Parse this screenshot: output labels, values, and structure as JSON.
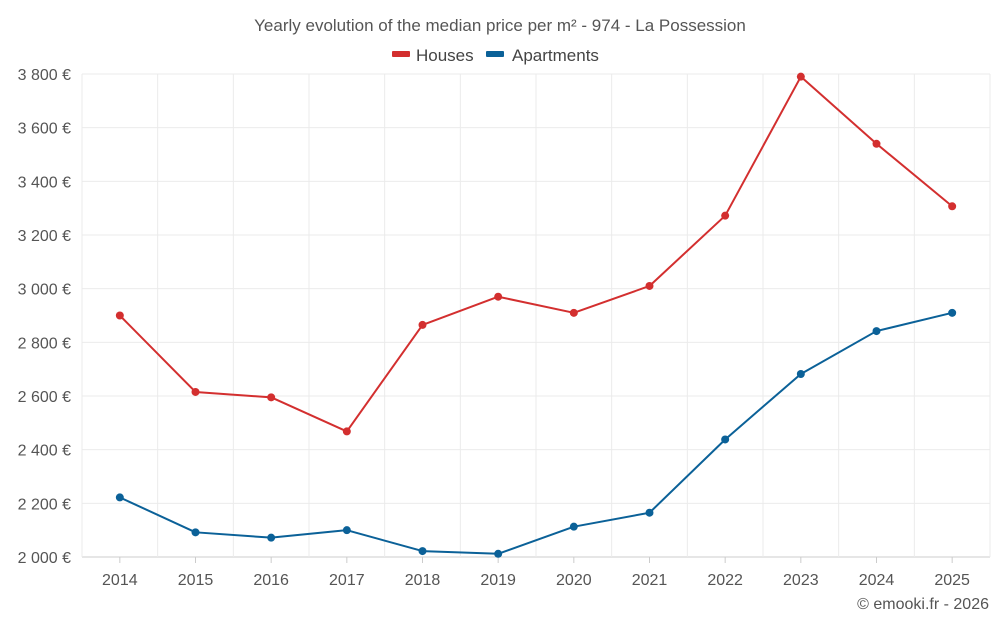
{
  "chart_data": {
    "type": "line",
    "title": "Yearly evolution of the median price per m² - 974 - La Possession",
    "categories": [
      "2014",
      "2015",
      "2016",
      "2017",
      "2018",
      "2019",
      "2020",
      "2021",
      "2022",
      "2023",
      "2024",
      "2025"
    ],
    "series": [
      {
        "name": "Houses",
        "color": "#d32f2f",
        "values": [
          2900,
          2615,
          2595,
          2468,
          2865,
          2970,
          2910,
          3010,
          3272,
          3790,
          3540,
          3307
        ]
      },
      {
        "name": "Apartments",
        "color": "#0b6198",
        "values": [
          2222,
          2092,
          2072,
          2100,
          2022,
          2012,
          2113,
          2165,
          2438,
          2682,
          2842,
          2910
        ]
      }
    ],
    "ylim": [
      2000,
      3800
    ],
    "yticks": [
      2000,
      2200,
      2400,
      2600,
      2800,
      3000,
      3200,
      3400,
      3600,
      3800
    ],
    "ytick_labels": [
      "2 000 €",
      "2 200 €",
      "2 400 €",
      "2 600 €",
      "2 800 €",
      "3 000 €",
      "3 200 €",
      "3 400 €",
      "3 600 €",
      "3 800 €"
    ],
    "xlabel": "",
    "ylabel": "",
    "legend_position": "top-center",
    "grid": true
  },
  "credit": "© emooki.fr - 2026"
}
